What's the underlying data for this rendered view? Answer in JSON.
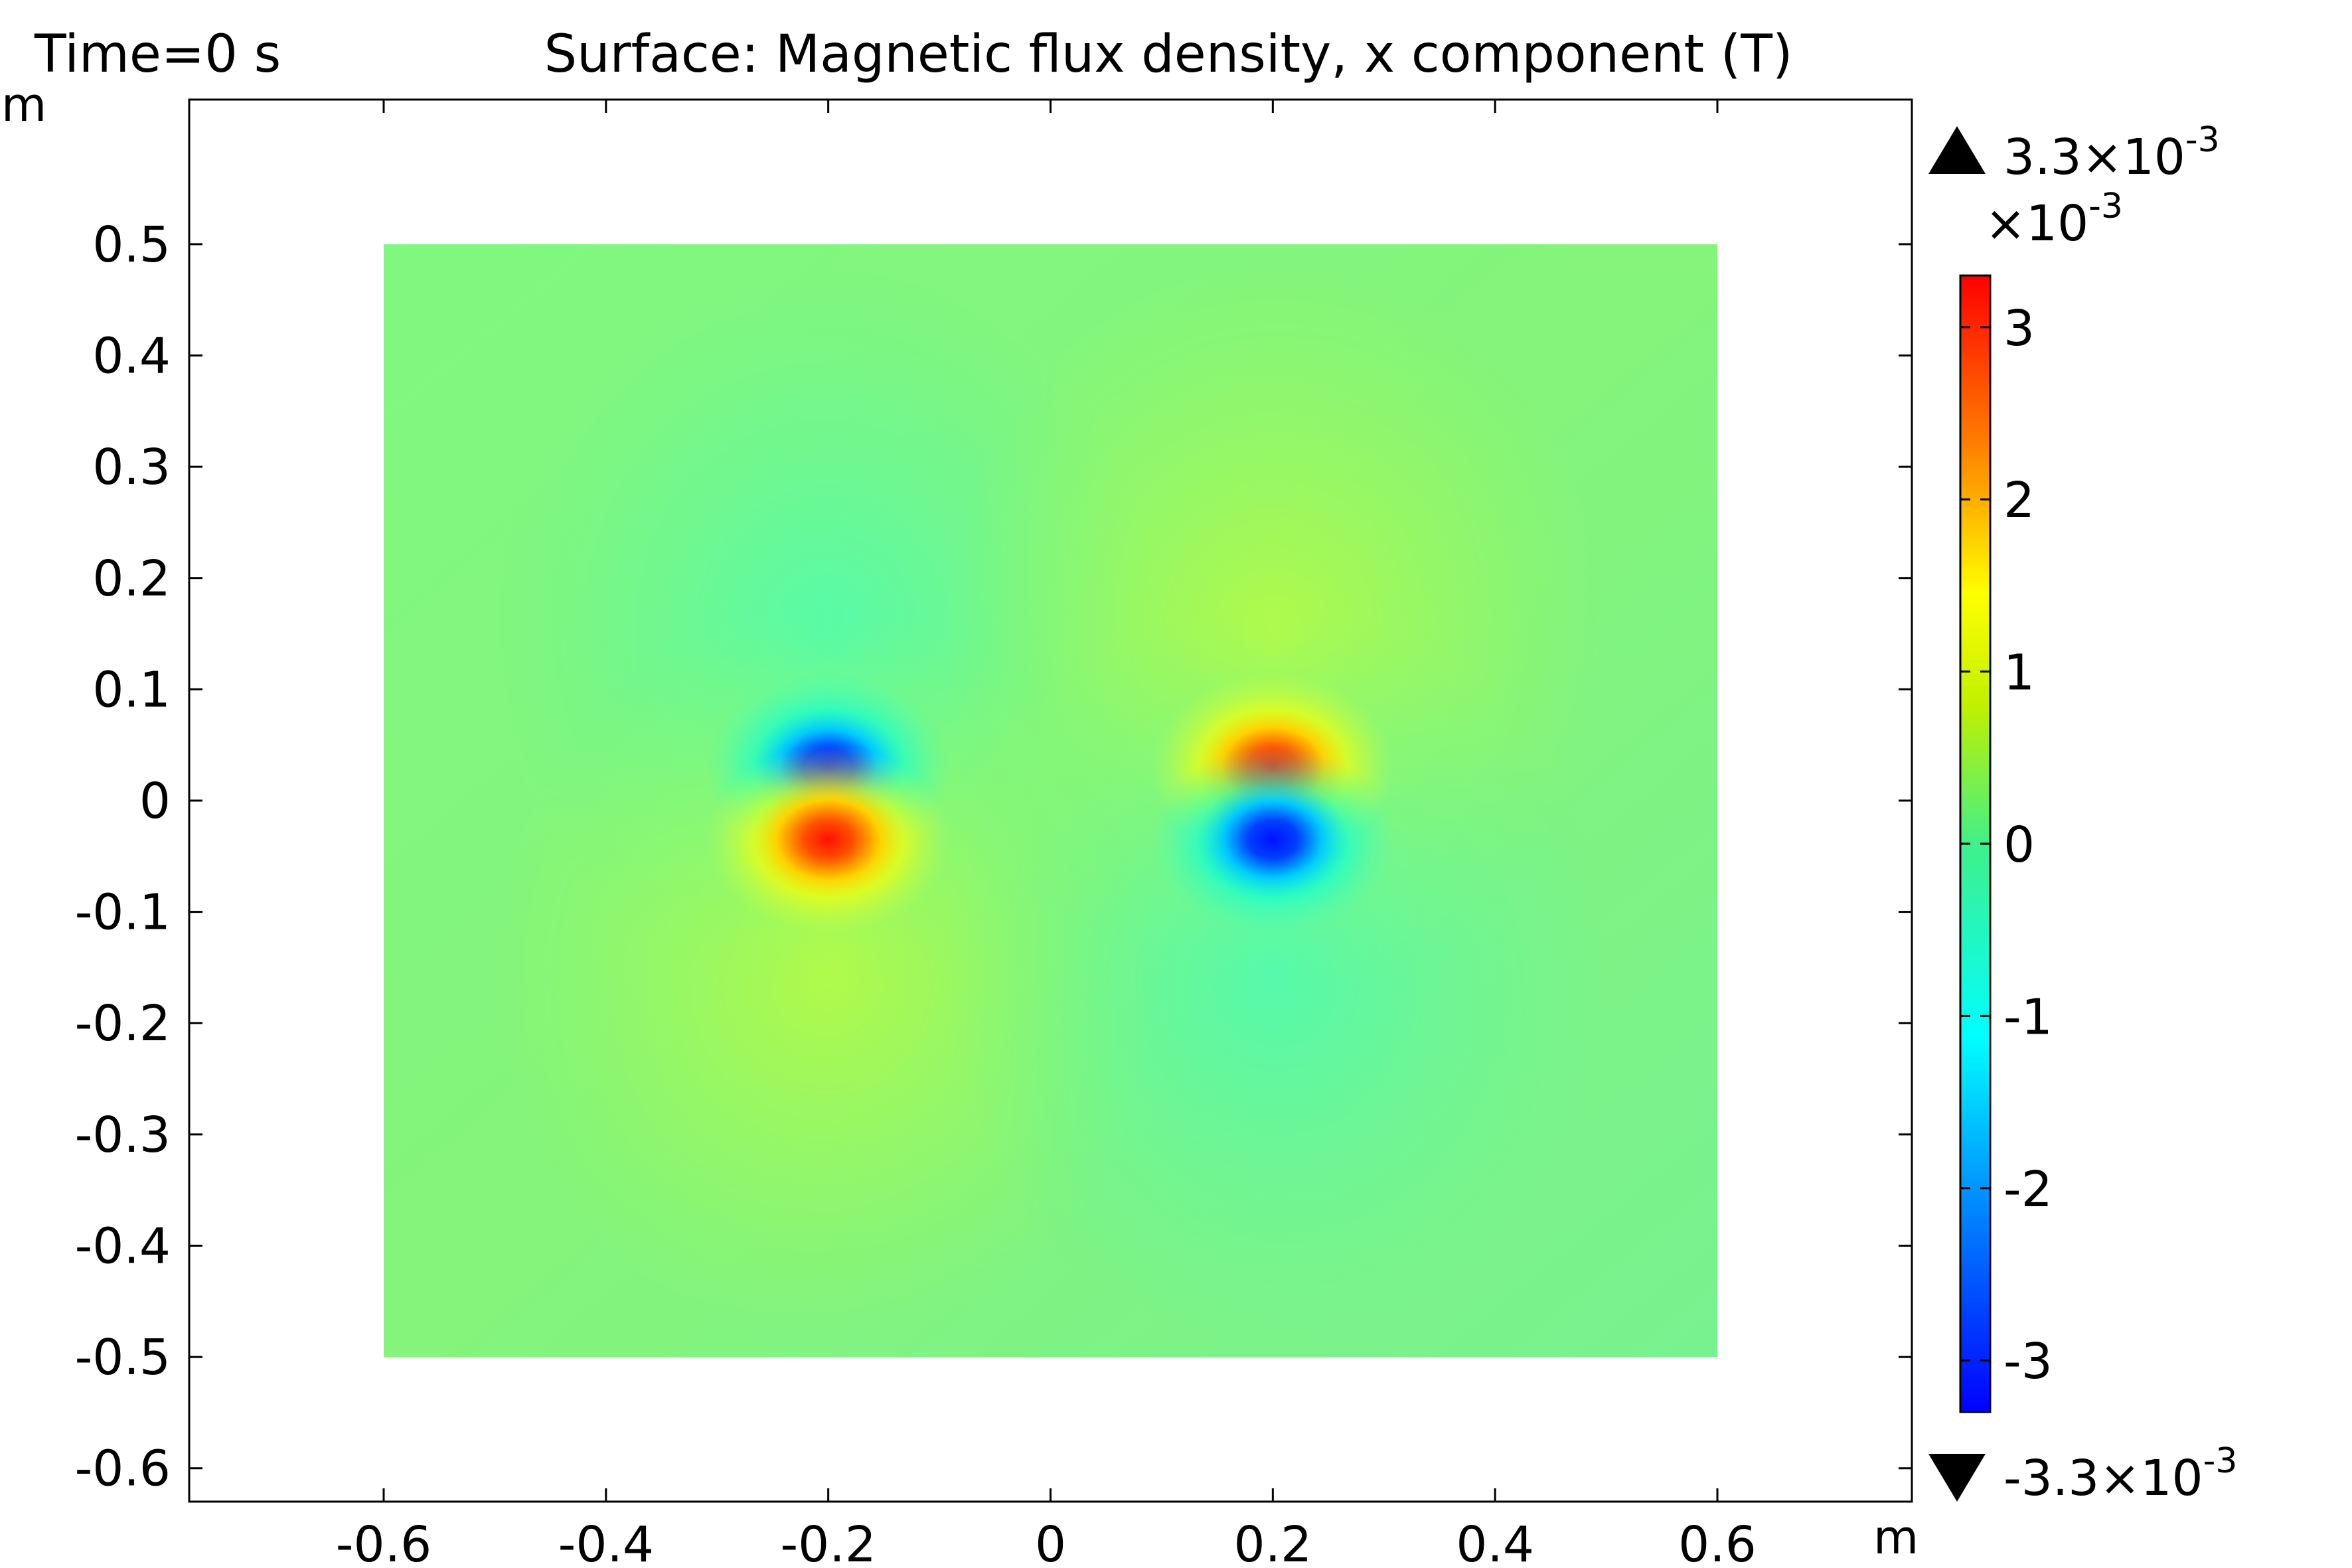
{
  "chart_data": {
    "type": "heatmap",
    "time_label": "Time=0 s",
    "title": "Surface: Magnetic flux density, x component (T)",
    "xlabel": "m",
    "ylabel": "m",
    "xlim": [
      -0.775,
      0.775
    ],
    "ylim": [
      -0.63,
      0.63
    ],
    "x_ticks": [
      -0.6,
      -0.4,
      -0.2,
      0,
      0.2,
      0.4,
      0.6
    ],
    "y_ticks": [
      -0.6,
      -0.5,
      -0.4,
      -0.3,
      -0.2,
      -0.1,
      0,
      0.1,
      0.2,
      0.3,
      0.4,
      0.5
    ],
    "x_tick_labels": [
      "-0.6",
      "-0.4",
      "-0.2",
      "0",
      "0.2",
      "0.4",
      "0.6"
    ],
    "y_tick_labels": [
      "-0.6",
      "-0.5",
      "-0.4",
      "-0.3",
      "-0.2",
      "-0.1",
      "0",
      "0.1",
      "0.2",
      "0.3",
      "0.4",
      "0.5"
    ],
    "domain_x": [
      -0.6,
      0.6
    ],
    "domain_y": [
      -0.5,
      0.5
    ],
    "field_features": [
      {
        "x": -0.2,
        "y": 0.03,
        "value": -3.3
      },
      {
        "x": -0.2,
        "y": -0.035,
        "value": 3.3
      },
      {
        "x": 0.2,
        "y": 0.03,
        "value": 3.3
      },
      {
        "x": 0.2,
        "y": -0.035,
        "value": -3.3
      }
    ],
    "colorbar": {
      "colormap": "rainbow",
      "max_label_base": "3.3×10",
      "max_label_exp": "-3",
      "min_label_base": "-3.3×10",
      "min_label_exp": "-3",
      "scale_base": "×10",
      "scale_exp": "-3",
      "range": [
        -3.3,
        3.3
      ],
      "ticks": [
        3,
        2,
        1,
        0,
        -1,
        -2,
        -3
      ],
      "tick_labels": [
        "3",
        "2",
        "1",
        "0",
        "-1",
        "-2",
        "-3"
      ]
    }
  }
}
